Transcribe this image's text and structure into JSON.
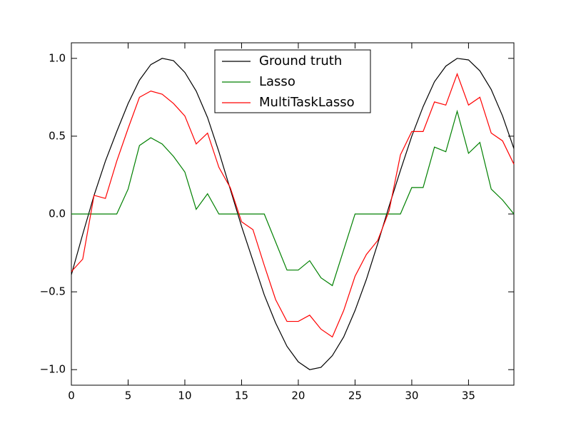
{
  "chart_data": {
    "type": "line",
    "x": [
      0,
      1,
      2,
      3,
      4,
      5,
      6,
      7,
      8,
      9,
      10,
      11,
      12,
      13,
      14,
      15,
      16,
      17,
      18,
      19,
      20,
      21,
      22,
      23,
      24,
      25,
      26,
      27,
      28,
      29,
      30,
      31,
      32,
      33,
      34,
      35,
      36,
      37,
      38,
      39
    ],
    "series": [
      {
        "name": "Ground truth",
        "color": "#000000",
        "values": [
          -0.39,
          -0.13,
          0.12,
          0.34,
          0.53,
          0.71,
          0.86,
          0.96,
          1.0,
          0.985,
          0.91,
          0.79,
          0.62,
          0.4,
          0.16,
          -0.08,
          -0.3,
          -0.52,
          -0.7,
          -0.85,
          -0.95,
          -1.0,
          -0.985,
          -0.91,
          -0.79,
          -0.62,
          -0.42,
          -0.19,
          0.05,
          0.28,
          0.5,
          0.69,
          0.85,
          0.95,
          1.0,
          0.99,
          0.92,
          0.8,
          0.63,
          0.42
        ]
      },
      {
        "name": "Lasso",
        "color": "#008000",
        "values": [
          0,
          0,
          0,
          0,
          0,
          0.16,
          0.44,
          0.49,
          0.45,
          0.37,
          0.27,
          0.03,
          0.13,
          0,
          0,
          0,
          0,
          0,
          -0.18,
          -0.36,
          -0.36,
          -0.3,
          -0.41,
          -0.46,
          -0.23,
          0,
          0,
          0,
          0,
          0,
          0.17,
          0.17,
          0.43,
          0.4,
          0.66,
          0.39,
          0.46,
          0.16,
          0.09,
          0
        ]
      },
      {
        "name": "MultiTaskLasso",
        "color": "#ff0000",
        "values": [
          -0.37,
          -0.29,
          0.12,
          0.1,
          0.34,
          0.55,
          0.75,
          0.79,
          0.77,
          0.71,
          0.63,
          0.45,
          0.52,
          0.3,
          0.17,
          -0.05,
          -0.1,
          -0.33,
          -0.55,
          -0.69,
          -0.69,
          -0.65,
          -0.74,
          -0.79,
          -0.62,
          -0.4,
          -0.26,
          -0.17,
          0.02,
          0.38,
          0.53,
          0.53,
          0.72,
          0.7,
          0.9,
          0.7,
          0.75,
          0.52,
          0.47,
          0.32
        ]
      }
    ],
    "xlim": [
      0,
      39
    ],
    "xticks": [
      0,
      5,
      10,
      15,
      20,
      25,
      30,
      35
    ],
    "ylim": [
      -1.1,
      1.1
    ],
    "yticks": [
      {
        "value": -1,
        "label": "−1.0"
      },
      {
        "value": -0.5,
        "label": "−0.5"
      },
      {
        "value": 0,
        "label": "0.0"
      },
      0.5,
      {
        "value": 1,
        "label": "1.0"
      }
    ],
    "grid": false,
    "legend": "upper center"
  }
}
